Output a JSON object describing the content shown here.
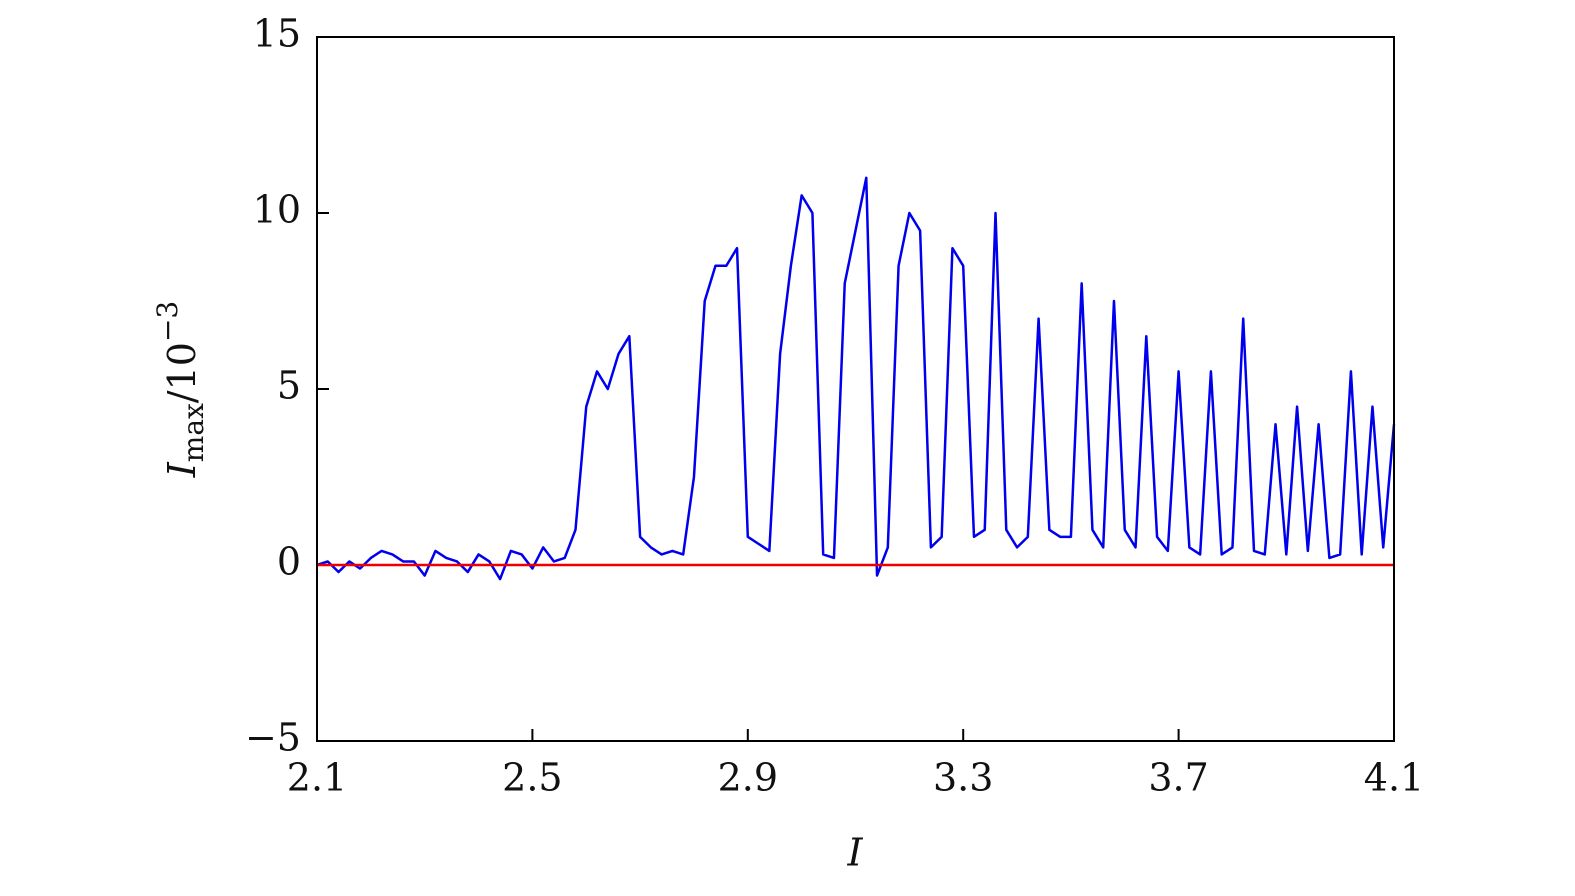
{
  "chart_data": {
    "type": "line",
    "x_label": "I",
    "y_label": {
      "base": "I",
      "sub": "max",
      "rest": "/10",
      "sup": "−3"
    },
    "x": [
      2.1,
      2.12,
      2.14,
      2.16,
      2.18,
      2.2,
      2.22,
      2.24,
      2.26,
      2.28,
      2.3,
      2.32,
      2.34,
      2.36,
      2.38,
      2.4,
      2.42,
      2.44,
      2.46,
      2.48,
      2.5,
      2.52,
      2.54,
      2.56,
      2.58,
      2.6,
      2.62,
      2.64,
      2.66,
      2.68,
      2.7,
      2.72,
      2.74,
      2.76,
      2.78,
      2.8,
      2.82,
      2.84,
      2.86,
      2.88,
      2.9,
      2.92,
      2.94,
      2.96,
      2.98,
      3.0,
      3.02,
      3.04,
      3.06,
      3.08,
      3.1,
      3.12,
      3.14,
      3.16,
      3.18,
      3.2,
      3.22,
      3.24,
      3.26,
      3.28,
      3.3,
      3.32,
      3.34,
      3.36,
      3.38,
      3.4,
      3.42,
      3.44,
      3.46,
      3.48,
      3.5,
      3.52,
      3.54,
      3.56,
      3.58,
      3.6,
      3.62,
      3.64,
      3.66,
      3.68,
      3.7,
      3.72,
      3.74,
      3.76,
      3.78,
      3.8,
      3.82,
      3.84,
      3.86,
      3.88,
      3.9,
      3.92,
      3.94,
      3.96,
      3.98,
      4.0,
      4.02,
      4.04,
      4.06,
      4.08,
      4.1
    ],
    "series": [
      {
        "color": "#0000ee",
        "values": [
          0,
          0.1,
          -0.2,
          0.1,
          -0.1,
          0.2,
          0.4,
          0.3,
          0.1,
          0.1,
          -0.3,
          0.4,
          0.2,
          0.1,
          -0.2,
          0.3,
          0.1,
          -0.4,
          0.4,
          0.3,
          -0.1,
          0.5,
          0.1,
          0.2,
          1,
          4.5,
          5.5,
          5,
          6,
          6.5,
          0.8,
          0.5,
          0.3,
          0.4,
          0.3,
          2.5,
          7.5,
          8.5,
          8.5,
          9,
          0.8,
          0.6,
          0.4,
          6,
          8.5,
          10.5,
          10,
          0.3,
          0.2,
          8,
          9.5,
          11,
          -0.3,
          0.5,
          8.5,
          10,
          9.5,
          0.5,
          0.8,
          9,
          8.5,
          0.8,
          1,
          10,
          1,
          0.5,
          0.8,
          7,
          1,
          0.8,
          0.8,
          8,
          1,
          0.5,
          7.5,
          1,
          0.5,
          6.5,
          0.8,
          0.4,
          5.5,
          0.5,
          0.3,
          5.5,
          0.3,
          0.5,
          7,
          0.4,
          0.3,
          4,
          0.3,
          4.5,
          0.4,
          4,
          0.2,
          0.3,
          5.5,
          0.3,
          4.5,
          0.5,
          4
        ]
      },
      {
        "color": "#ee0000",
        "x": [
          2.1,
          4.1
        ],
        "values": [
          0,
          0
        ]
      }
    ],
    "xlim": [
      2.1,
      4.1
    ],
    "xticks": [
      2.1,
      2.5,
      2.9,
      3.3,
      3.7,
      4.1
    ],
    "ylim": [
      -5,
      15
    ],
    "yticks": [
      {
        "value": -5,
        "label": "−5"
      },
      0,
      5,
      10,
      15
    ]
  }
}
